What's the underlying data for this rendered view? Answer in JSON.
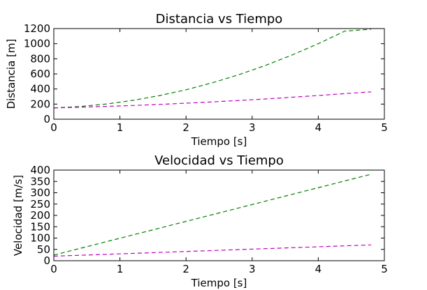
{
  "chart_data": [
    {
      "type": "line",
      "title": "Distancia vs Tiempo",
      "xlabel": "Tiempo [s]",
      "ylabel": "Distancia [m]",
      "xlim": [
        0,
        5
      ],
      "ylim": [
        0,
        1200
      ],
      "xticks": [
        0,
        1,
        2,
        3,
        4,
        5
      ],
      "yticks": [
        0,
        200,
        400,
        600,
        800,
        1000,
        1200
      ],
      "grid": false,
      "x": [
        0,
        0.4,
        0.8,
        1.2,
        1.6,
        2.0,
        2.4,
        2.8,
        3.2,
        3.6,
        4.0,
        4.4,
        4.8
      ],
      "series": [
        {
          "color": "#008000",
          "style": "dashed",
          "values": [
            150,
            168,
            202,
            250,
            313,
            390,
            483,
            590,
            712,
            849,
            1000,
            1166,
            1192
          ]
        },
        {
          "color": "#bf00bf",
          "style": "dashed",
          "values": [
            150,
            159,
            170,
            182,
            196,
            212,
            229,
            248,
            268,
            291,
            314,
            339,
            362
          ]
        }
      ]
    },
    {
      "type": "line",
      "title": "Velocidad vs Tiempo",
      "xlabel": "Tiempo [s]",
      "ylabel": "Velocidad [m/s]",
      "xlim": [
        0,
        5
      ],
      "ylim": [
        0,
        400
      ],
      "xticks": [
        0,
        1,
        2,
        3,
        4,
        5
      ],
      "yticks": [
        0,
        50,
        100,
        150,
        200,
        250,
        300,
        350,
        400
      ],
      "grid": false,
      "x": [
        0,
        4.8
      ],
      "series": [
        {
          "color": "#008000",
          "style": "dashed",
          "values": [
            25,
            382
          ]
        },
        {
          "color": "#bf00bf",
          "style": "dashed",
          "values": [
            20,
            70
          ]
        }
      ]
    }
  ]
}
